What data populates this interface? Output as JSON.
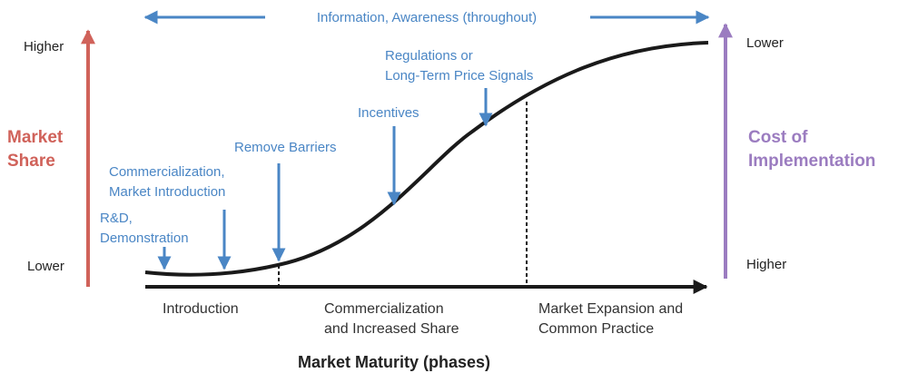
{
  "colors": {
    "measure": "#4a86c5",
    "market_share": "#d0625a",
    "cost": "#9b7cc0",
    "curve": "#1a1a1a",
    "text": "#222222"
  },
  "top_banner": {
    "label": "Information, Awareness (throughout)"
  },
  "left_axis": {
    "title_line1": "Market",
    "title_line2": "Share",
    "high_label": "Higher",
    "low_label": "Lower"
  },
  "right_axis": {
    "title_line1": "Cost of",
    "title_line2": "Implementation",
    "top_label": "Lower",
    "bottom_label": "Higher"
  },
  "measures": [
    {
      "line1": "R&D,",
      "line2": "Demonstration"
    },
    {
      "line1": "Commercialization,",
      "line2": "Market Introduction"
    },
    {
      "line1": "Remove Barriers"
    },
    {
      "line1": "Incentives"
    },
    {
      "line1": "Regulations or",
      "line2": "Long-Term Price Signals"
    }
  ],
  "phases": [
    {
      "line1": "Introduction"
    },
    {
      "line1": "Commercialization",
      "line2": "and Increased Share"
    },
    {
      "line1": "Market Expansion and",
      "line2": "Common Practice"
    }
  ],
  "x_axis": {
    "title": "Market Maturity (phases)"
  }
}
